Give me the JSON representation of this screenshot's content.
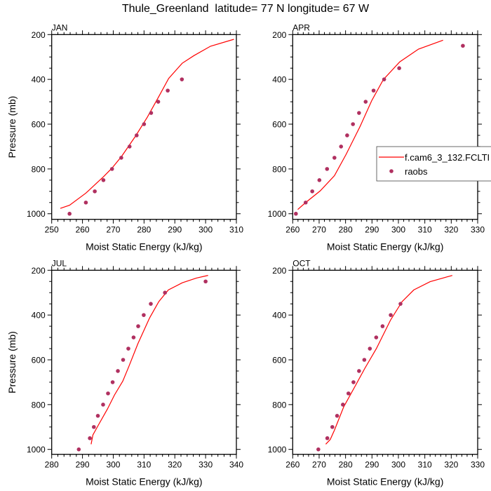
{
  "title": "Thule_Greenland  latitude= 77 N longitude= 67 W",
  "colors": {
    "model_line": "#ff0000",
    "raobs_marker": "#b03060",
    "axes": "#000000"
  },
  "legend": {
    "placement": "right-middle of APR panel",
    "model_label": "f.cam6_3_132.FCLTI",
    "obs_label": "raobs"
  },
  "chart_data": [
    {
      "type": "line+scatter",
      "panel": "JAN",
      "title": "JAN",
      "xlabel": "Moist Static Energy (kJ/kg)",
      "ylabel": "Pressure (mb)",
      "xlim": [
        250,
        310
      ],
      "ylim": [
        1025,
        200
      ],
      "y_inverted": true,
      "xticks": [
        250,
        260,
        270,
        280,
        290,
        300,
        310
      ],
      "yticks": [
        200,
        400,
        600,
        800,
        1000
      ],
      "series": [
        {
          "name": "f.cam6_3_132.FCLTI",
          "style": "line",
          "x": [
            252.8,
            255.8,
            261.1,
            266.8,
            269.6,
            272.7,
            277.3,
            281.1,
            284.9,
            288.0,
            292.4,
            296.2,
            301.6,
            309.2
          ],
          "y": [
            976,
            962,
            908,
            835,
            796,
            744,
            652,
            568,
            474,
            396,
            328,
            294,
            252,
            221
          ]
        },
        {
          "name": "raobs",
          "style": "markers",
          "x": [
            255.8,
            261.1,
            264.0,
            266.8,
            269.6,
            272.6,
            275.3,
            277.6,
            280.0,
            282.3,
            284.6,
            287.7,
            292.3
          ],
          "y": [
            1000,
            950,
            900,
            850,
            800,
            750,
            700,
            650,
            600,
            550,
            500,
            450,
            400
          ]
        }
      ]
    },
    {
      "type": "line+scatter",
      "panel": "APR",
      "title": "APR",
      "xlabel": "Moist Static Energy (kJ/kg)",
      "ylabel": "",
      "xlim": [
        260,
        330
      ],
      "ylim": [
        1025,
        200
      ],
      "y_inverted": true,
      "xticks": [
        260,
        270,
        280,
        290,
        300,
        310,
        320,
        330
      ],
      "yticks": [
        200,
        400,
        600,
        800,
        1000
      ],
      "series": [
        {
          "name": "f.cam6_3_132.FCLTI",
          "style": "line",
          "x": [
            261.9,
            264.9,
            270.4,
            275.8,
            280.2,
            285.5,
            289.9,
            294.3,
            300.5,
            307.6,
            316.9
          ],
          "y": [
            981,
            950,
            898,
            830,
            735,
            610,
            495,
            401,
            322,
            265,
            225
          ]
        },
        {
          "name": "raobs",
          "style": "markers",
          "x": [
            261.2,
            264.9,
            267.4,
            270.1,
            273.0,
            275.8,
            278.3,
            280.6,
            282.8,
            285.1,
            287.6,
            290.6,
            294.6,
            300.3,
            324.4
          ],
          "y": [
            1000,
            950,
            900,
            850,
            800,
            750,
            700,
            650,
            600,
            550,
            500,
            450,
            400,
            350,
            250
          ]
        }
      ]
    },
    {
      "type": "line+scatter",
      "panel": "JUL",
      "title": "JUL",
      "xlabel": "Moist Static Energy (kJ/kg)",
      "ylabel": "Pressure (mb)",
      "xlim": [
        280,
        340
      ],
      "ylim": [
        1022,
        200
      ],
      "y_inverted": true,
      "xticks": [
        280,
        290,
        300,
        310,
        320,
        330,
        340
      ],
      "yticks": [
        200,
        400,
        600,
        800,
        1000
      ],
      "series": [
        {
          "name": "f.cam6_3_132.FCLTI",
          "style": "line",
          "x": [
            292.8,
            293.4,
            295.1,
            298.1,
            300.4,
            303.1,
            305.0,
            308.0,
            311.8,
            314.8,
            317.9,
            322.4,
            327.0,
            330.8
          ],
          "y": [
            977,
            935,
            893,
            820,
            757,
            695,
            632,
            528,
            413,
            340,
            288,
            256,
            235,
            223
          ]
        },
        {
          "name": "raobs",
          "style": "markers",
          "x": [
            288.8,
            292.4,
            293.7,
            295.0,
            296.7,
            298.3,
            299.8,
            301.5,
            303.2,
            304.9,
            306.6,
            308.1,
            309.9,
            312.2,
            316.8,
            330.0
          ],
          "y": [
            1000,
            950,
            900,
            850,
            800,
            750,
            700,
            650,
            600,
            550,
            500,
            450,
            400,
            350,
            300,
            250
          ]
        }
      ]
    },
    {
      "type": "line+scatter",
      "panel": "OCT",
      "title": "OCT",
      "xlabel": "Moist Static Energy (kJ/kg)",
      "ylabel": "",
      "xlim": [
        260,
        330
      ],
      "ylim": [
        1022,
        200
      ],
      "y_inverted": true,
      "xticks": [
        260,
        270,
        280,
        290,
        300,
        310,
        320,
        330
      ],
      "yticks": [
        200,
        400,
        600,
        800,
        1000
      ],
      "series": [
        {
          "name": "f.cam6_3_132.FCLTI",
          "style": "line",
          "x": [
            272.5,
            274.2,
            275.8,
            279.3,
            283.7,
            287.3,
            291.7,
            297.0,
            301.4,
            305.8,
            312.0,
            320.4
          ],
          "y": [
            977,
            956,
            914,
            810,
            716,
            638,
            549,
            423,
            340,
            288,
            251,
            223
          ]
        },
        {
          "name": "raobs",
          "style": "markers",
          "x": [
            269.7,
            273.1,
            275.0,
            276.8,
            279.0,
            281.1,
            283.0,
            285.1,
            287.1,
            289.2,
            291.6,
            294.0,
            297.1,
            300.8
          ],
          "y": [
            1000,
            950,
            900,
            850,
            800,
            750,
            700,
            650,
            600,
            550,
            500,
            450,
            400,
            350
          ]
        }
      ]
    }
  ]
}
